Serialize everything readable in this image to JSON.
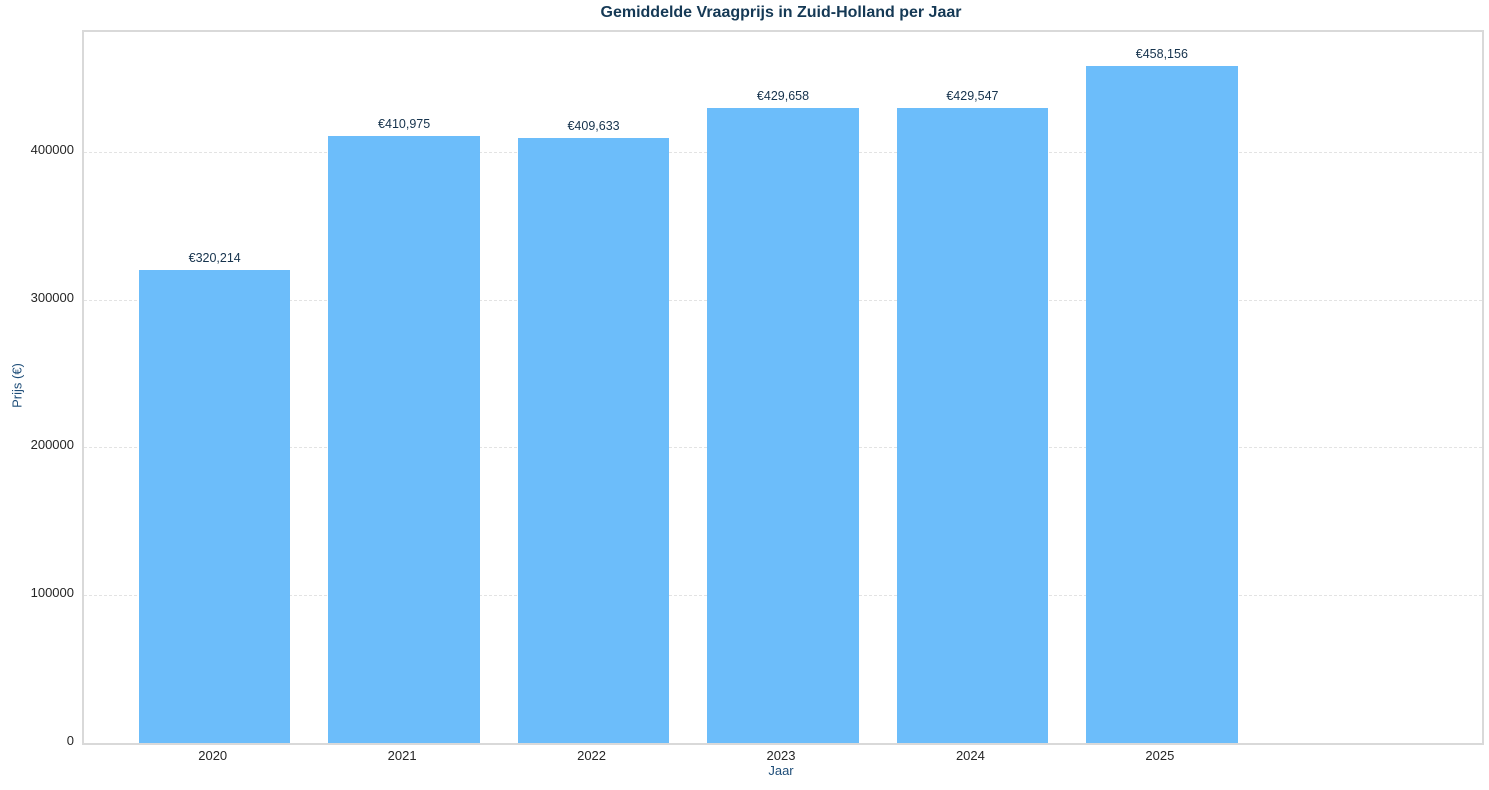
{
  "chart_data": {
    "type": "bar",
    "title": "Gemiddelde Vraagprijs in Zuid-Holland per Jaar",
    "xlabel": "Jaar",
    "ylabel": "Prijs (€)",
    "categories": [
      "2020",
      "2021",
      "2022",
      "2023",
      "2024",
      "2025"
    ],
    "values": [
      320214,
      410975,
      409633,
      429658,
      429547,
      458156
    ],
    "value_labels": [
      "€320,214",
      "€410,975",
      "€409,633",
      "€429,658",
      "€429,547",
      "€458,156"
    ],
    "yticks": [
      0,
      100000,
      200000,
      300000,
      400000
    ],
    "ytick_labels": [
      "0",
      "100000",
      "200000",
      "300000",
      "400000"
    ],
    "ylim": [
      0,
      481064
    ],
    "grid": "horizontal-dashed",
    "legend": "none",
    "colors": {
      "bar_fill": "#6cbdfa",
      "title_text": "#153955",
      "axis_label_text": "#1f4e79",
      "tick_text": "#262626",
      "value_label_text": "#16334d",
      "gridline": "#e3e3e3",
      "spine": "#d9d9d9",
      "background": "#ffffff"
    }
  }
}
